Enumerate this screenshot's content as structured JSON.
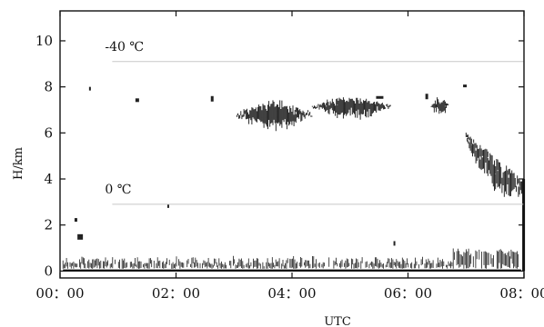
{
  "chart_data": {
    "type": "heatmap",
    "title": "",
    "xlabel": "UTC",
    "ylabel": "H/km",
    "xlim": [
      0,
      8
    ],
    "ylim": [
      -0.3,
      11.3
    ],
    "x_ticks": [
      {
        "value": 0,
        "label": "00：00"
      },
      {
        "value": 2,
        "label": "02：00"
      },
      {
        "value": 4,
        "label": "04：00"
      },
      {
        "value": 6,
        "label": "06：00"
      },
      {
        "value": 8,
        "label": "08：00"
      }
    ],
    "y_ticks": [
      {
        "value": 0,
        "label": "0"
      },
      {
        "value": 2,
        "label": "2"
      },
      {
        "value": 4,
        "label": "4"
      },
      {
        "value": 6,
        "label": "6"
      },
      {
        "value": 8,
        "label": "8"
      },
      {
        "value": 10,
        "label": "10"
      }
    ],
    "isotherms": [
      {
        "label": "-40 ℃",
        "height_km": 9.1,
        "x_start": 0.9,
        "x_end": 8.0
      },
      {
        "label": "0 ℃",
        "height_km": 2.9,
        "x_start": 0.9,
        "x_end": 8.0
      }
    ],
    "echo_regions": [
      {
        "name": "low-level echo",
        "x_start": 0.05,
        "x_end": 7.95,
        "y_min": 0.1,
        "y_max": 0.85
      },
      {
        "name": "cloud layer A",
        "x_start": 3.05,
        "x_end": 4.35,
        "y_min": 6.2,
        "y_max": 7.4
      },
      {
        "name": "cloud layer B",
        "x_start": 4.35,
        "x_end": 5.7,
        "y_min": 6.7,
        "y_max": 7.6
      },
      {
        "name": "cloud patch C",
        "x_start": 6.4,
        "x_end": 6.7,
        "y_min": 6.8,
        "y_max": 7.6
      },
      {
        "name": "descending layer D",
        "x_start": 7.0,
        "x_end": 8.0,
        "y_min": 3.3,
        "y_max": 6.0
      }
    ],
    "grid": false,
    "legend": "none"
  }
}
